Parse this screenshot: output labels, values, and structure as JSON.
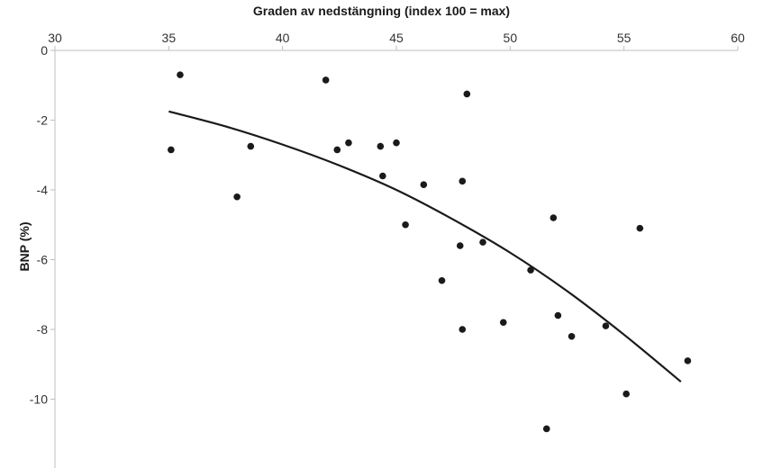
{
  "chart_data": {
    "type": "scatter",
    "xlabel": "Graden av nedstängning (index 100 = max)",
    "ylabel": "BNP (%)",
    "xlim": [
      30,
      60
    ],
    "ylim": [
      -11.5,
      0
    ],
    "x_ticks": [
      30,
      35,
      40,
      45,
      50,
      55,
      60
    ],
    "y_ticks": [
      0,
      -2,
      -4,
      -6,
      -8,
      -10
    ],
    "x_axis_position": "top",
    "grid": false,
    "legend": "none",
    "points": [
      {
        "x": 35.1,
        "y": -2.85
      },
      {
        "x": 35.5,
        "y": -0.7
      },
      {
        "x": 38.0,
        "y": -4.2
      },
      {
        "x": 38.6,
        "y": -2.75
      },
      {
        "x": 41.9,
        "y": -0.85
      },
      {
        "x": 42.4,
        "y": -2.85
      },
      {
        "x": 42.9,
        "y": -2.65
      },
      {
        "x": 44.3,
        "y": -2.75
      },
      {
        "x": 44.4,
        "y": -3.6
      },
      {
        "x": 45.0,
        "y": -2.65
      },
      {
        "x": 45.4,
        "y": -5.0
      },
      {
        "x": 46.2,
        "y": -3.85
      },
      {
        "x": 47.0,
        "y": -6.6
      },
      {
        "x": 47.8,
        "y": -5.6
      },
      {
        "x": 47.9,
        "y": -8.0
      },
      {
        "x": 47.9,
        "y": -3.75
      },
      {
        "x": 48.1,
        "y": -1.25
      },
      {
        "x": 48.8,
        "y": -5.5
      },
      {
        "x": 49.7,
        "y": -7.8
      },
      {
        "x": 50.9,
        "y": -6.3
      },
      {
        "x": 51.6,
        "y": -10.85
      },
      {
        "x": 51.9,
        "y": -4.8
      },
      {
        "x": 52.1,
        "y": -7.6
      },
      {
        "x": 52.7,
        "y": -8.2
      },
      {
        "x": 54.2,
        "y": -7.9
      },
      {
        "x": 55.1,
        "y": -9.85
      },
      {
        "x": 55.7,
        "y": -5.1
      },
      {
        "x": 57.8,
        "y": -8.9
      }
    ],
    "trendline": {
      "type": "polynomial",
      "points": [
        {
          "x": 35.0,
          "y": -1.75
        },
        {
          "x": 37.5,
          "y": -2.18
        },
        {
          "x": 40.0,
          "y": -2.7
        },
        {
          "x": 42.5,
          "y": -3.3
        },
        {
          "x": 45.0,
          "y": -4.0
        },
        {
          "x": 47.5,
          "y": -4.85
        },
        {
          "x": 50.0,
          "y": -5.8
        },
        {
          "x": 52.5,
          "y": -6.9
        },
        {
          "x": 55.0,
          "y": -8.15
        },
        {
          "x": 57.5,
          "y": -9.5
        }
      ]
    },
    "colors": {
      "points": "#1a1a1a",
      "line": "#1a1a1a",
      "axis": "#bfbfbf",
      "text": "#333333"
    }
  }
}
